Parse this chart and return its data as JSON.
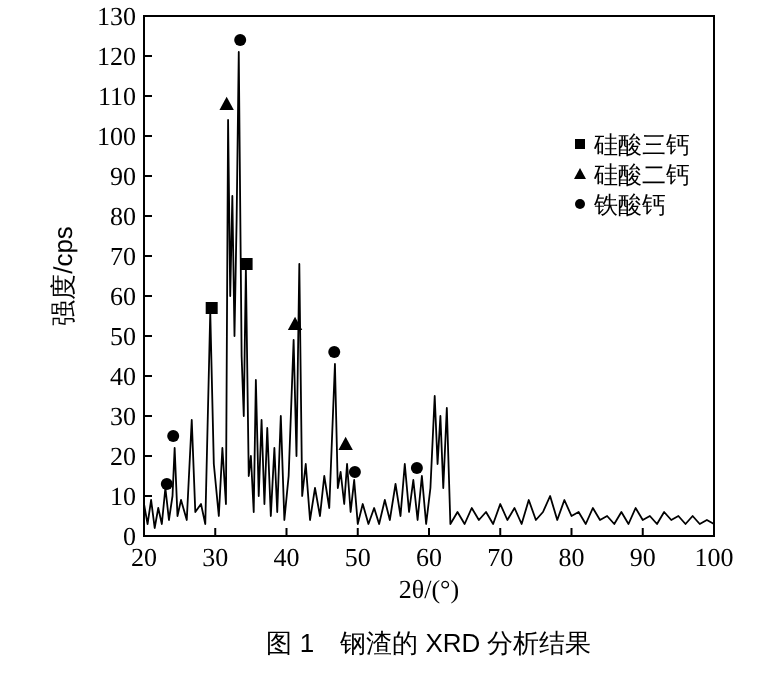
{
  "chart_data": {
    "type": "line",
    "xlabel": "2θ/(°)",
    "ylabel": "强度/cps",
    "annotations": [
      "图 1　钢渣的 XRD 分析结果"
    ],
    "xlim": [
      20,
      100
    ],
    "xticks": [
      20,
      30,
      40,
      50,
      60,
      70,
      80,
      90,
      100
    ],
    "ylim": [
      0,
      130
    ],
    "yticks": [
      0,
      10,
      20,
      30,
      40,
      50,
      60,
      70,
      80,
      90,
      100,
      110,
      120,
      130
    ],
    "grid": false,
    "legend": "top right",
    "series": [
      {
        "type": "line",
        "color": "#000000",
        "marker": "none",
        "line_style": "solid",
        "x": [
          20,
          20.5,
          21,
          21.5,
          22,
          22.5,
          23,
          23.5,
          24,
          24.3,
          24.7,
          25.2,
          26,
          26.7,
          27.2,
          28,
          28.6,
          29.3,
          29.8,
          30.5,
          31,
          31.5,
          31.8,
          32.1,
          32.4,
          32.7,
          33.0,
          33.3,
          33.7,
          34.0,
          34.3,
          34.7,
          35.0,
          35.4,
          35.7,
          36.1,
          36.5,
          36.9,
          37.3,
          37.8,
          38.3,
          38.7,
          39.2,
          39.7,
          40.3,
          41.0,
          41.4,
          41.8,
          42.2,
          42.7,
          43.3,
          44,
          44.7,
          45.3,
          46,
          46.8,
          47.2,
          47.6,
          48.1,
          48.5,
          49,
          49.5,
          50,
          50.7,
          51.5,
          52.3,
          53,
          53.8,
          54.5,
          55.3,
          56,
          56.6,
          57.2,
          57.8,
          58.4,
          59,
          59.6,
          60.2,
          60.8,
          61.2,
          61.6,
          62.0,
          62.5,
          63,
          64,
          65,
          66,
          67,
          68,
          69,
          70,
          71,
          72,
          73,
          74,
          75,
          76,
          77,
          78,
          79,
          80,
          81,
          82,
          83,
          84,
          85,
          86,
          87,
          88,
          89,
          90,
          91,
          92,
          93,
          94,
          95,
          96,
          97,
          98,
          99,
          100
        ],
        "values": [
          8,
          3,
          9,
          2,
          7,
          3,
          12,
          4,
          10,
          22,
          5,
          9,
          4,
          29,
          6,
          8,
          3,
          56,
          18,
          5,
          22,
          8,
          104,
          60,
          85,
          50,
          79,
          121,
          45,
          30,
          67,
          15,
          20,
          6,
          39,
          10,
          29,
          8,
          27,
          5,
          22,
          6,
          30,
          4,
          15,
          49,
          20,
          68,
          10,
          18,
          4,
          12,
          5,
          15,
          7,
          43,
          12,
          16,
          8,
          18,
          6,
          14,
          3,
          8,
          3,
          7,
          3,
          9,
          4,
          13,
          5,
          18,
          6,
          14,
          4,
          15,
          3,
          12,
          35,
          18,
          30,
          12,
          32,
          3,
          6,
          3,
          7,
          4,
          6,
          3,
          8,
          4,
          7,
          3,
          9,
          4,
          6,
          10,
          4,
          9,
          5,
          6,
          3,
          7,
          4,
          5,
          3,
          6,
          3,
          7,
          4,
          5,
          3,
          6,
          4,
          5,
          3,
          5,
          3,
          4,
          3
        ]
      },
      {
        "type": "scatter",
        "name": "硅酸三钙",
        "color": "#000000",
        "marker": "square",
        "x": [
          29.5,
          34.4
        ],
        "values": [
          57,
          68
        ]
      },
      {
        "type": "scatter",
        "name": "硅酸二钙",
        "color": "#000000",
        "marker": "triangle",
        "x": [
          31.6,
          41.2,
          48.3
        ],
        "values": [
          108,
          53,
          23
        ]
      },
      {
        "type": "scatter",
        "name": "铁酸钙",
        "color": "#000000",
        "marker": "circle",
        "x": [
          23.2,
          24.1,
          33.5,
          46.7,
          49.6,
          58.3
        ],
        "values": [
          13,
          25,
          124,
          46,
          16,
          17
        ]
      }
    ]
  }
}
